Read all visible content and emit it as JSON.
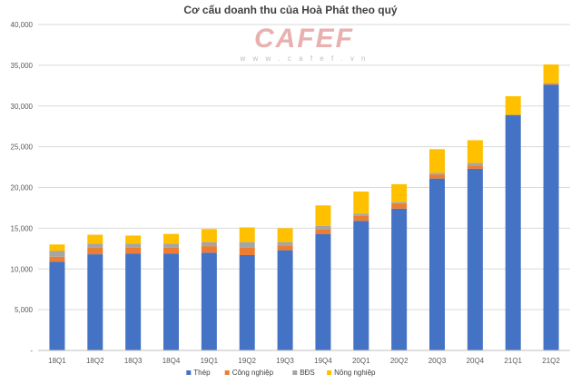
{
  "chart_data": {
    "type": "bar",
    "stacked": true,
    "title": "Cơ cấu doanh thu của Hoà Phát theo quý",
    "xlabel": "",
    "ylabel": "",
    "ylim": [
      0,
      40000
    ],
    "y_ticks": [
      "-",
      "5,000",
      "10,000",
      "15,000",
      "20,000",
      "25,000",
      "30,000",
      "35,000",
      "40,000"
    ],
    "categories": [
      "18Q1",
      "18Q2",
      "18Q3",
      "18Q4",
      "19Q1",
      "19Q2",
      "19Q3",
      "19Q4",
      "20Q1",
      "20Q2",
      "20Q3",
      "20Q4",
      "21Q1",
      "21Q2"
    ],
    "series": [
      {
        "name": "Thép",
        "color": "#4472c4",
        "values": [
          10900,
          11800,
          11900,
          11900,
          12000,
          11700,
          12300,
          14300,
          15900,
          17400,
          21100,
          22300,
          28900,
          32600
        ]
      },
      {
        "name": "Công nghiệp",
        "color": "#ed7d31",
        "values": [
          600,
          800,
          700,
          700,
          800,
          900,
          600,
          600,
          600,
          600,
          500,
          400,
          0,
          100
        ]
      },
      {
        "name": "BĐS",
        "color": "#a5a5a5",
        "values": [
          700,
          500,
          500,
          500,
          500,
          700,
          400,
          400,
          300,
          200,
          200,
          300,
          0,
          100
        ]
      },
      {
        "name": "Nông nghiệp",
        "color": "#ffc000",
        "values": [
          800,
          1100,
          1000,
          1200,
          1600,
          1800,
          1700,
          2500,
          2700,
          2200,
          2900,
          2800,
          2300,
          2300
        ]
      }
    ],
    "legend_position": "bottom",
    "grid": true
  },
  "watermark": {
    "main": "CAFEF",
    "sub": "w w w . c a f e f . v n"
  }
}
